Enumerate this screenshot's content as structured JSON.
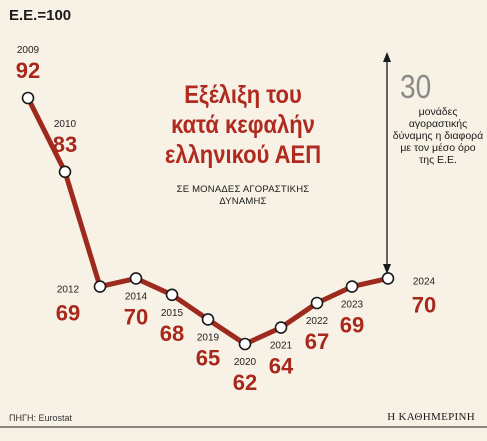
{
  "header": {
    "index_label": "Ε.Ε.=100"
  },
  "title": "Εξέλιξη του κατά κεφαλήν ελληνικού ΑΕΠ",
  "subtitle": "ΣΕ ΜΟΝΑΔΕΣ ΑΓΟΡΑΣΤΙΚΗΣ ΔΥΝΑΜΗΣ",
  "annotation": {
    "number": "30",
    "text": "μονάδες αγοραστικής δύναμης η διαφορά με τον μέσο όρο της Ε.Ε."
  },
  "footer": {
    "source": "ΠΗΓΗ: Eurostat",
    "brand": "Η ΚΑΘΗΜΕΡΙΝΗ"
  },
  "colors": {
    "line": "#9e2a1e",
    "value_text": "#a8281c",
    "title": "#b02a1f",
    "background": "#f7f1e6"
  },
  "chart_data": {
    "type": "line",
    "title": "Εξέλιξη του κατά κεφαλήν ελληνικού ΑΕΠ",
    "subtitle": "ΣΕ ΜΟΝΑΔΕΣ ΑΓΟΡΑΣΤΙΚΗΣ ΔΥΝΑΜΗΣ",
    "categories": [
      "2009",
      "2010",
      "2012",
      "2014",
      "2015",
      "2019",
      "2020",
      "2021",
      "2022",
      "2023",
      "2024"
    ],
    "values": [
      92,
      83,
      69,
      70,
      68,
      65,
      62,
      64,
      67,
      69,
      70
    ],
    "grid": false,
    "legend": "none"
  }
}
